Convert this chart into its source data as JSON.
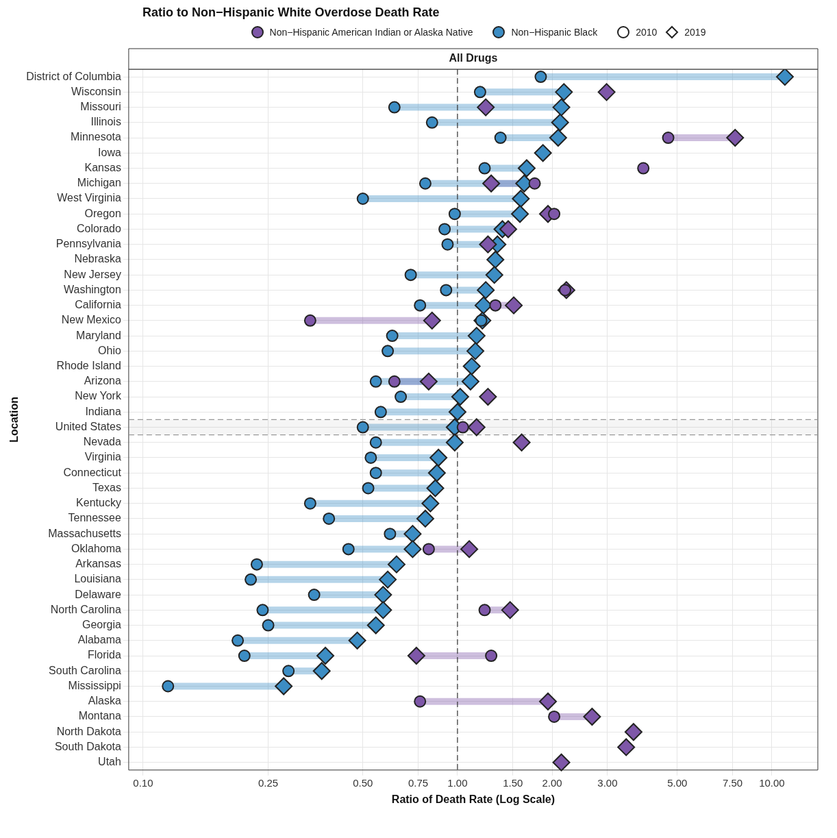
{
  "chart_data": {
    "type": "scatter",
    "title": "Ratio to Non−Hispanic White Overdose Death Rate",
    "subtitle": "All Drugs",
    "xlabel": "Ratio of Death Rate (Log Scale)",
    "ylabel": "Location",
    "categories": [
      "District of Columbia",
      "Wisconsin",
      "Missouri",
      "Illinois",
      "Minnesota",
      "Iowa",
      "Kansas",
      "Michigan",
      "West Virginia",
      "Oregon",
      "Colorado",
      "Pennsylvania",
      "Nebraska",
      "New Jersey",
      "Washington",
      "California",
      "New Mexico",
      "Maryland",
      "Ohio",
      "Rhode Island",
      "Arizona",
      "New York",
      "Indiana",
      "United States",
      "Nevada",
      "Virginia",
      "Connecticut",
      "Texas",
      "Kentucky",
      "Tennessee",
      "Massachusetts",
      "Oklahoma",
      "Arkansas",
      "Louisiana",
      "Delaware",
      "North Carolina",
      "Georgia",
      "Alabama",
      "Florida",
      "South Carolina",
      "Mississippi",
      "Alaska",
      "Montana",
      "North Dakota",
      "South Dakota",
      "Utah"
    ],
    "series": [
      {
        "name": "Non−Hispanic American Indian or Alaska Native",
        "color": "#7e57a8",
        "marker": "circle",
        "values": [
          null,
          null,
          null,
          null,
          4.68,
          null,
          3.9,
          1.76,
          null,
          2.03,
          null,
          null,
          null,
          null,
          2.2,
          1.32,
          0.34,
          null,
          null,
          null,
          0.63,
          null,
          null,
          1.04,
          null,
          null,
          null,
          null,
          null,
          null,
          null,
          0.81,
          null,
          null,
          null,
          1.22,
          null,
          null,
          1.28,
          null,
          null,
          0.76,
          2.03,
          null,
          null,
          null
        ]
      },
      {
        "color": "#7e57a8",
        "marker": "diamond",
        "values": [
          null,
          2.98,
          1.23,
          null,
          7.64,
          null,
          null,
          1.28,
          null,
          1.94,
          1.45,
          1.25,
          null,
          null,
          2.22,
          1.51,
          0.83,
          null,
          null,
          null,
          0.81,
          1.25,
          null,
          1.15,
          1.6,
          null,
          null,
          null,
          null,
          null,
          null,
          1.09,
          null,
          null,
          null,
          1.47,
          null,
          null,
          0.74,
          null,
          null,
          1.94,
          2.68,
          3.63,
          3.44,
          2.14
        ]
      },
      {
        "name": "Non−Hispanic Black",
        "color": "#3c8dc4",
        "marker": "circle",
        "values": [
          1.84,
          1.18,
          0.63,
          0.83,
          1.37,
          null,
          1.22,
          0.79,
          0.5,
          0.98,
          0.91,
          0.93,
          null,
          0.71,
          0.92,
          0.76,
          1.19,
          0.62,
          0.6,
          null,
          0.55,
          0.66,
          0.57,
          0.5,
          0.55,
          0.53,
          0.55,
          0.52,
          0.34,
          0.39,
          0.61,
          0.45,
          0.23,
          0.22,
          0.35,
          0.24,
          0.25,
          0.2,
          0.21,
          0.29,
          0.12,
          null,
          null,
          null,
          null,
          null
        ]
      },
      {
        "color": "#3c8dc4",
        "marker": "diamond",
        "values": [
          11.0,
          2.18,
          2.14,
          2.12,
          2.09,
          1.87,
          1.66,
          1.63,
          1.59,
          1.58,
          1.39,
          1.34,
          1.32,
          1.31,
          1.23,
          1.21,
          1.2,
          1.15,
          1.14,
          1.11,
          1.1,
          1.02,
          1.0,
          0.98,
          0.98,
          0.87,
          0.86,
          0.85,
          0.82,
          0.79,
          0.72,
          0.72,
          0.64,
          0.6,
          0.58,
          0.58,
          0.55,
          0.48,
          0.38,
          0.37,
          0.28,
          null,
          null,
          null,
          null,
          null
        ]
      }
    ],
    "annotations": [
      "2010",
      "2019"
    ],
    "log": "x",
    "xlim": [
      0.09,
      14
    ],
    "xticks": [
      {
        "value": 0.1,
        "label": "0.10"
      },
      {
        "value": 0.25,
        "label": "0.25"
      },
      {
        "value": 0.5,
        "label": "0.50"
      },
      {
        "value": 0.75,
        "label": "0.75"
      },
      {
        "value": 1,
        "label": "1.00"
      },
      {
        "value": 1.5,
        "label": "1.50"
      },
      {
        "value": 2,
        "label": "2.00"
      },
      {
        "value": 3,
        "label": "3.00"
      },
      {
        "value": 5,
        "label": "5.00"
      },
      {
        "value": 7.5,
        "label": "7.50"
      },
      {
        "value": 10,
        "label": "10.00"
      }
    ],
    "ref_lines": [
      {
        "axis": "x",
        "value": 1,
        "color": "#333333",
        "line_style": "dashed"
      }
    ],
    "bands": [
      {
        "axis": "y",
        "from": "United States",
        "to": "United States",
        "color": "#999999"
      }
    ],
    "orientation": "horizontal",
    "grid": true,
    "legend": "top"
  }
}
